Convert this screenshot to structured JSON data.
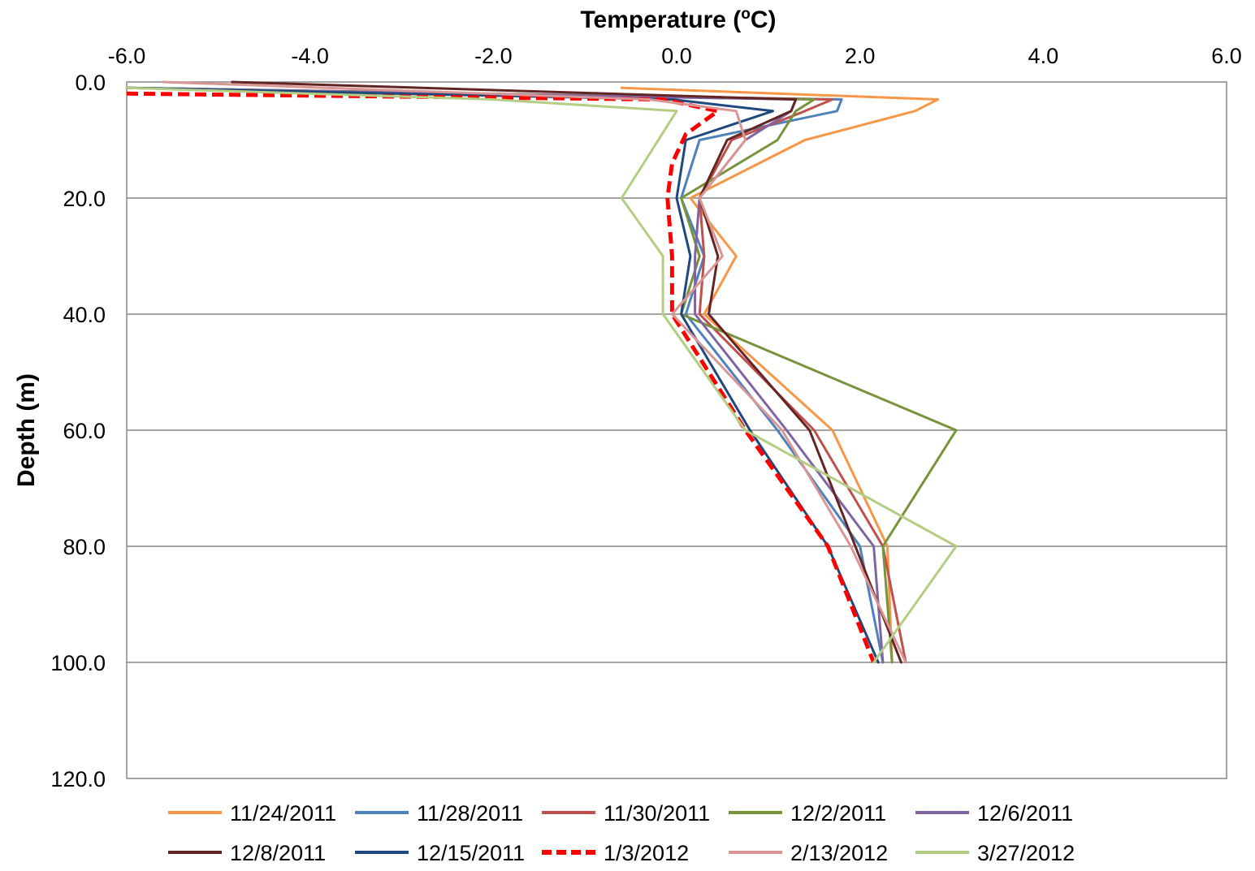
{
  "chart_data": {
    "type": "line",
    "title": "",
    "xlabel": {
      "main": "Temperature (",
      "sup": "o",
      "end": "C)"
    },
    "ylabel": "Depth (m)",
    "xlim": [
      -6.0,
      6.0
    ],
    "ylim": [
      0,
      120
    ],
    "y_inverted": true,
    "x_axis_position": "top",
    "x_ticks": [
      -6.0,
      -4.0,
      -2.0,
      0.0,
      2.0,
      4.0,
      6.0
    ],
    "y_ticks": [
      0,
      20,
      40,
      60,
      80,
      100,
      120
    ],
    "x_tick_labels": [
      "-6.0",
      "-4.0",
      "-2.0",
      "0.0",
      "2.0",
      "4.0",
      "6.0"
    ],
    "y_tick_labels": [
      "0.0",
      "20.0",
      "40.0",
      "60.0",
      "80.0",
      "100.0",
      "120.0"
    ],
    "grid": "horizontal",
    "legend_position": "bottom",
    "series": [
      {
        "name": "11/24/2011",
        "color": "#F79646",
        "dashed": false,
        "width": 3,
        "points": [
          [
            -0.6,
            1
          ],
          [
            2.85,
            3
          ],
          [
            2.6,
            5
          ],
          [
            1.4,
            10
          ],
          [
            0.15,
            20
          ],
          [
            0.65,
            30
          ],
          [
            0.3,
            40
          ],
          [
            1.7,
            60
          ],
          [
            2.3,
            80
          ],
          [
            2.35,
            100
          ]
        ]
      },
      {
        "name": "11/28/2011",
        "color": "#4F81BD",
        "dashed": false,
        "width": 3,
        "points": [
          [
            -6.0,
            1
          ],
          [
            1.8,
            3
          ],
          [
            1.75,
            5
          ],
          [
            0.25,
            10
          ],
          [
            0.05,
            20
          ],
          [
            0.3,
            30
          ],
          [
            0.1,
            40
          ],
          [
            1.1,
            60
          ],
          [
            2.0,
            80
          ],
          [
            2.25,
            100
          ]
        ]
      },
      {
        "name": "11/30/2011",
        "color": "#C0504D",
        "dashed": false,
        "width": 3,
        "points": [
          [
            -6.0,
            1
          ],
          [
            1.7,
            3
          ],
          [
            1.4,
            5
          ],
          [
            0.6,
            10
          ],
          [
            0.25,
            20
          ],
          [
            0.3,
            30
          ],
          [
            0.25,
            40
          ],
          [
            1.5,
            60
          ],
          [
            2.25,
            80
          ],
          [
            2.5,
            100
          ]
        ]
      },
      {
        "name": "12/2/2011",
        "color": "#77933C",
        "dashed": false,
        "width": 3,
        "points": [
          [
            -6.0,
            1
          ],
          [
            1.5,
            3
          ],
          [
            1.3,
            5
          ],
          [
            1.1,
            10
          ],
          [
            0.05,
            20
          ],
          [
            0.25,
            30
          ],
          [
            0.05,
            40
          ],
          [
            3.05,
            60
          ],
          [
            2.25,
            80
          ],
          [
            2.35,
            100
          ]
        ]
      },
      {
        "name": "12/6/2011",
        "color": "#8064A2",
        "dashed": false,
        "width": 3,
        "points": [
          [
            -6.0,
            1
          ],
          [
            1.3,
            3
          ],
          [
            1.25,
            5
          ],
          [
            0.75,
            10
          ],
          [
            0.25,
            20
          ],
          [
            0.2,
            30
          ],
          [
            0.2,
            40
          ],
          [
            1.2,
            60
          ],
          [
            2.15,
            80
          ],
          [
            2.25,
            100
          ]
        ]
      },
      {
        "name": "12/8/2011",
        "color": "#632523",
        "dashed": false,
        "width": 3,
        "points": [
          [
            -4.85,
            0
          ],
          [
            1.3,
            3
          ],
          [
            1.25,
            5
          ],
          [
            0.55,
            10
          ],
          [
            0.25,
            20
          ],
          [
            0.45,
            30
          ],
          [
            0.35,
            40
          ],
          [
            1.45,
            60
          ],
          [
            1.95,
            80
          ],
          [
            2.45,
            100
          ]
        ]
      },
      {
        "name": "12/15/2011",
        "color": "#1F497D",
        "dashed": false,
        "width": 3,
        "points": [
          [
            -6.0,
            1
          ],
          [
            -0.05,
            3
          ],
          [
            1.05,
            5
          ],
          [
            0.1,
            10
          ],
          [
            0.0,
            20
          ],
          [
            0.15,
            30
          ],
          [
            0.05,
            40
          ],
          [
            0.8,
            60
          ],
          [
            1.65,
            80
          ],
          [
            2.2,
            100
          ]
        ]
      },
      {
        "name": "1/3/2012",
        "color": "#FF0000",
        "dashed": true,
        "width": 5,
        "points": [
          [
            -6.0,
            2
          ],
          [
            -0.15,
            3
          ],
          [
            0.45,
            5
          ],
          [
            0.1,
            9
          ],
          [
            -0.05,
            14
          ],
          [
            -0.1,
            20
          ],
          [
            -0.05,
            30
          ],
          [
            -0.05,
            40
          ],
          [
            0.75,
            60
          ],
          [
            1.65,
            80
          ],
          [
            2.15,
            100
          ]
        ]
      },
      {
        "name": "2/13/2012",
        "color": "#D99694",
        "dashed": false,
        "width": 3,
        "points": [
          [
            -5.6,
            0
          ],
          [
            -0.3,
            3
          ],
          [
            0.65,
            5
          ],
          [
            0.75,
            10
          ],
          [
            0.25,
            20
          ],
          [
            0.5,
            30
          ],
          [
            -0.05,
            40
          ],
          [
            1.15,
            60
          ],
          [
            1.9,
            80
          ],
          [
            2.5,
            100
          ]
        ]
      },
      {
        "name": "3/27/2012",
        "color": "#B3CE82",
        "dashed": false,
        "width": 3,
        "points": [
          [
            -6.0,
            1
          ],
          [
            -2.0,
            3
          ],
          [
            0.0,
            5
          ],
          [
            -0.6,
            20
          ],
          [
            -0.15,
            30
          ],
          [
            -0.15,
            40
          ],
          [
            0.75,
            60
          ],
          [
            3.05,
            80
          ],
          [
            2.15,
            100
          ]
        ]
      }
    ]
  }
}
